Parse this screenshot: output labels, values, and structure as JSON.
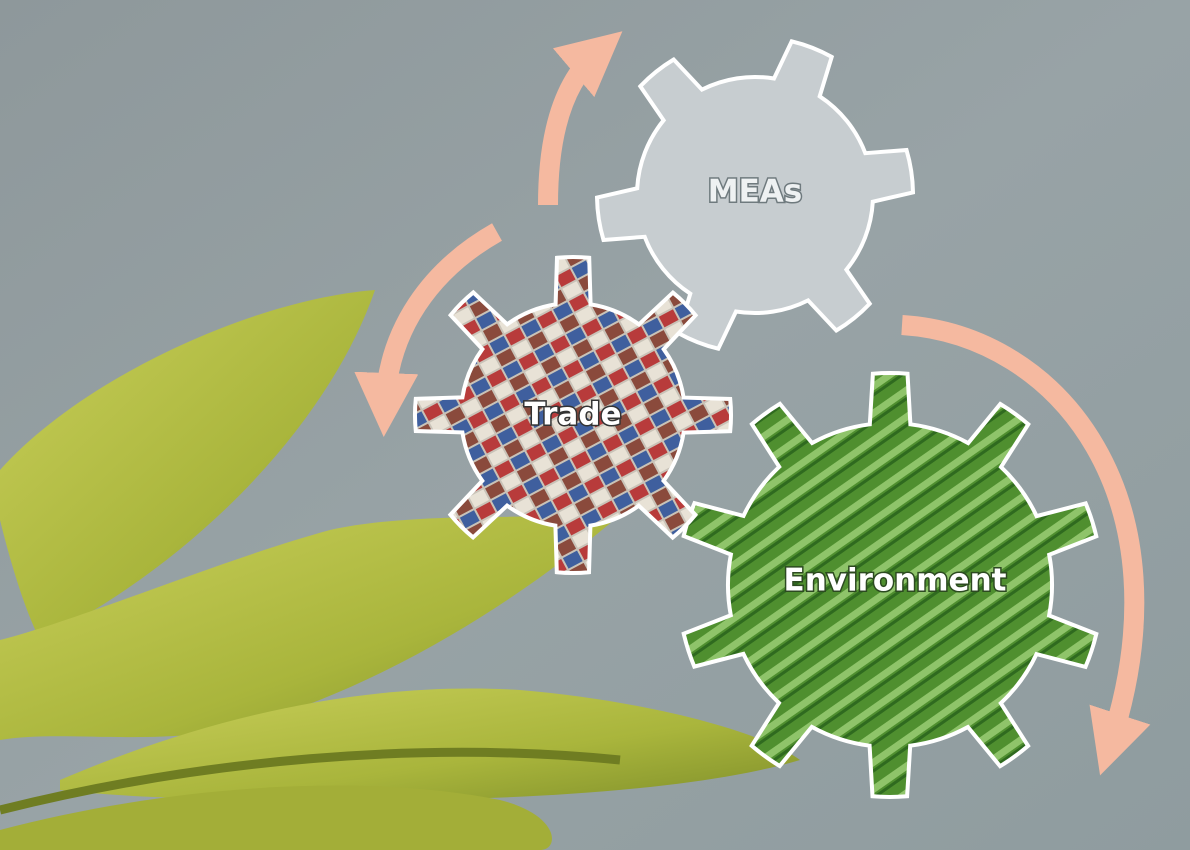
{
  "nodes": [
    {
      "label": "MEAs"
    },
    {
      "label": "Trade"
    },
    {
      "label": "Environment"
    }
  ]
}
